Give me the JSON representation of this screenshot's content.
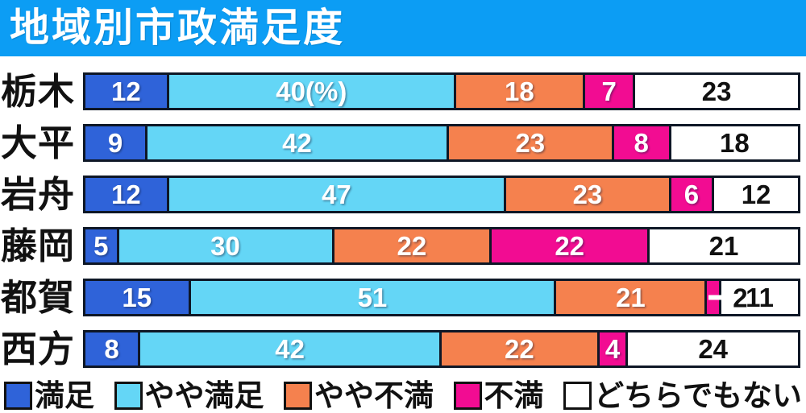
{
  "title": "地域別市政満足度",
  "colors": {
    "title_bg": "#0c9df4",
    "title_text": "#ffffff",
    "background": "#ffffff",
    "segment_border": "#0e1726",
    "value_text_light": "#ffffff",
    "value_text_dark": "#111111",
    "legend_text": "#111111"
  },
  "chart_data": {
    "type": "bar",
    "orientation": "horizontal",
    "stacked": true,
    "unit": "%",
    "title": "地域別市政満足度",
    "xlim": [
      0,
      100
    ],
    "grid": false,
    "legend_position": "bottom",
    "categories": [
      "栃木",
      "大平",
      "岩舟",
      "藤岡",
      "都賀",
      "西方"
    ],
    "series": [
      {
        "key": "satisfied",
        "name": "満足",
        "color": "#2f63d9",
        "values": [
          12,
          9,
          12,
          5,
          15,
          8
        ]
      },
      {
        "key": "somewhat-satisfied",
        "name": "やや満足",
        "color": "#64d6f6",
        "values": [
          40,
          42,
          47,
          30,
          51,
          42
        ]
      },
      {
        "key": "somewhat-dissatisfied",
        "name": "やや不満",
        "color": "#f5814e",
        "values": [
          18,
          23,
          23,
          22,
          21,
          22
        ]
      },
      {
        "key": "dissatisfied",
        "name": "不満",
        "color": "#f20c92",
        "values": [
          7,
          8,
          6,
          22,
          2,
          4
        ]
      },
      {
        "key": "neutral",
        "name": "どちらでもない",
        "color": "#ffffff",
        "values": [
          23,
          18,
          12,
          21,
          11,
          24
        ]
      }
    ],
    "display_labels": [
      [
        "12",
        "40(%)",
        "18",
        "7",
        "23"
      ],
      [
        "9",
        "42",
        "23",
        "8",
        "18"
      ],
      [
        "12",
        "47",
        "23",
        "6",
        "12"
      ],
      [
        "5",
        "30",
        "22",
        "22",
        "21"
      ],
      [
        "15",
        "51",
        "21",
        "2",
        "11"
      ],
      [
        "8",
        "42",
        "22",
        "4",
        "24"
      ]
    ],
    "outside_labels": [
      {
        "row": 4,
        "series": 3,
        "text": "2"
      }
    ]
  },
  "legend": {
    "items": [
      {
        "key": "satisfied",
        "label": "満足",
        "color": "#2f63d9"
      },
      {
        "key": "somewhat-satisfied",
        "label": "やや満足",
        "color": "#64d6f6"
      },
      {
        "key": "somewhat-dissatisfied",
        "label": "やや不満",
        "color": "#f5814e"
      },
      {
        "key": "dissatisfied",
        "label": "不満",
        "color": "#f20c92"
      },
      {
        "key": "neutral",
        "label": "どちらでもない",
        "color": "#ffffff"
      }
    ]
  }
}
